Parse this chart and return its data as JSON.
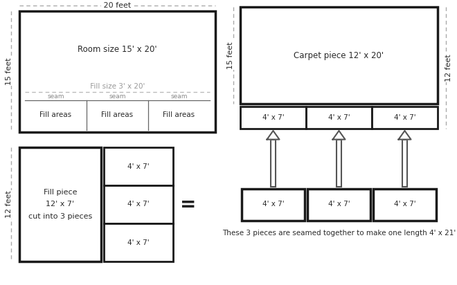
{
  "bg_color": "#ffffff",
  "text_color": "#2a2a2a",
  "gray_text": "#999999",
  "seam_text": "#888888",
  "box_edge": "#1a1a1a",
  "dashed_color": "#aaaaaa",
  "top_dim_label": "20 feet",
  "left_dim_15": "15 feet",
  "right_dim_15": "15 feet",
  "right_dim_12": "12 feet",
  "left_dim_12": "12 feet",
  "room_label": "Room size 15' x 20'",
  "fill_size_label": "Fill size 3' x 20'",
  "seam_label": "seam",
  "fill_area_label": "Fill areas",
  "carpet_label": "Carpet piece 12' x 20'",
  "piece_4x7": "4' x 7'",
  "fill_piece_label": "Fill piece\n12' x 7'\ncut into 3 pieces",
  "equals_sign": "=",
  "bottom_text": "These 3 pieces are seamed together to make one length 4' x 21'"
}
